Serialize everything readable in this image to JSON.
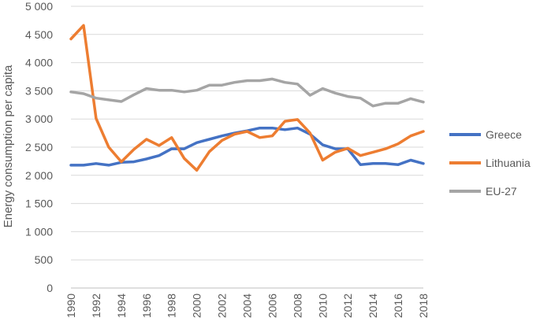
{
  "chart_data": {
    "type": "line",
    "title": "",
    "xlabel": "",
    "ylabel": "Energy consumption per capita",
    "ylim": [
      0,
      5000
    ],
    "y_ticks": [
      0,
      500,
      1000,
      1500,
      2000,
      2500,
      3000,
      3500,
      4000,
      4500,
      5000
    ],
    "y_tick_labels": [
      "0",
      "500",
      "1 000",
      "1 500",
      "2 000",
      "2 500",
      "3 000",
      "3 500",
      "4 000",
      "4 500",
      "5 000"
    ],
    "x": [
      1990,
      1991,
      1992,
      1993,
      1994,
      1995,
      1996,
      1997,
      1998,
      1999,
      2000,
      2001,
      2002,
      2003,
      2004,
      2005,
      2006,
      2007,
      2008,
      2009,
      2010,
      2011,
      2012,
      2013,
      2014,
      2015,
      2016,
      2017,
      2018
    ],
    "x_tick_labels": [
      "1990",
      "1992",
      "1994",
      "1996",
      "1998",
      "2000",
      "2002",
      "2004",
      "2006",
      "2008",
      "2010",
      "2012",
      "2014",
      "2016",
      "2018"
    ],
    "grid": "horizontal",
    "legend_position": "right",
    "series": [
      {
        "name": "Greece",
        "color": "#4472C4",
        "values": [
          2180,
          2180,
          2210,
          2180,
          2230,
          2240,
          2290,
          2350,
          2470,
          2470,
          2580,
          2640,
          2700,
          2750,
          2790,
          2840,
          2840,
          2810,
          2840,
          2730,
          2540,
          2470,
          2470,
          2190,
          2210,
          2210,
          2190,
          2270,
          2210
        ]
      },
      {
        "name": "Lithuania",
        "color": "#ED7D31",
        "values": [
          4420,
          4660,
          3010,
          2500,
          2240,
          2460,
          2640,
          2530,
          2670,
          2300,
          2090,
          2420,
          2620,
          2730,
          2780,
          2670,
          2700,
          2960,
          2990,
          2750,
          2270,
          2410,
          2480,
          2350,
          2410,
          2470,
          2560,
          2700,
          2780
        ]
      },
      {
        "name": "EU-27",
        "color": "#A5A5A5",
        "values": [
          3480,
          3450,
          3370,
          3340,
          3310,
          3430,
          3540,
          3510,
          3510,
          3480,
          3510,
          3600,
          3600,
          3650,
          3680,
          3680,
          3710,
          3650,
          3620,
          3420,
          3540,
          3460,
          3400,
          3370,
          3230,
          3280,
          3280,
          3360,
          3300
        ]
      }
    ]
  }
}
